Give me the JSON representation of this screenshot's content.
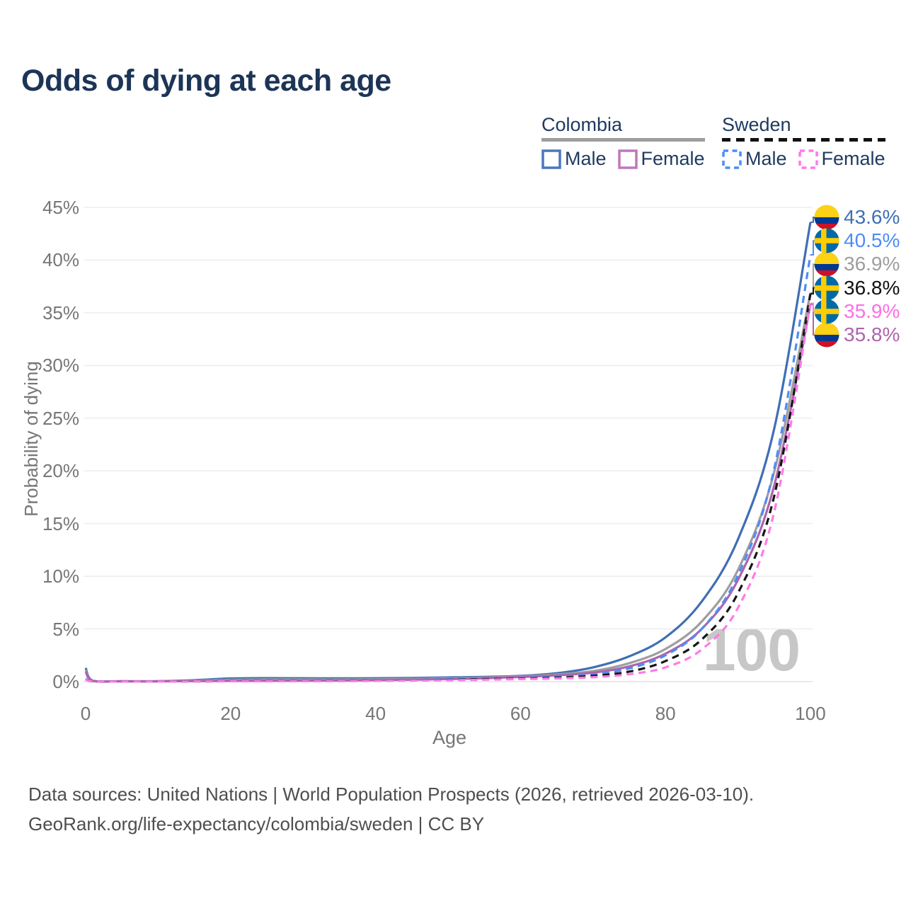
{
  "title": "Odds of dying at each age",
  "colors": {
    "title_text": "#1c3557",
    "legend_text": "#1e3a5f",
    "axis_text": "#767676",
    "grid_line": "#ededed",
    "baseline": "#e2e2e2",
    "watermark_text": "#c7c7c7",
    "footer_text": "#4e4e4e"
  },
  "legend": {
    "groups": [
      {
        "id": "colombia",
        "label": "Colombia",
        "line_color": "#9e9e9e",
        "dashed": false,
        "items": [
          {
            "id": "colombia-male",
            "label": "Male",
            "color": "#4a77bd",
            "dashed": false
          },
          {
            "id": "colombia-female",
            "label": "Female",
            "color": "#bd79bd",
            "dashed": false
          }
        ]
      },
      {
        "id": "sweden",
        "label": "Sweden",
        "line_color": "#111111",
        "dashed": true,
        "items": [
          {
            "id": "sweden-male",
            "label": "Male",
            "color": "#4e8cf7",
            "dashed": true
          },
          {
            "id": "sweden-female",
            "label": "Female",
            "color": "#ff7ae6",
            "dashed": true
          }
        ]
      }
    ]
  },
  "axes": {
    "x": {
      "label": "Age",
      "ticks": [
        0,
        20,
        40,
        60,
        80,
        100
      ],
      "range": [
        0,
        100
      ]
    },
    "y": {
      "label": "Probability of dying",
      "ticks": [
        0,
        5,
        10,
        15,
        20,
        25,
        30,
        35,
        40,
        45
      ],
      "unit": "%",
      "range": [
        0,
        45
      ]
    }
  },
  "watermark": "100",
  "footer": {
    "line1": "Data sources: United Nations | World Population Prospects (2026, retrieved 2026-03-10).",
    "line2": "GeoRank.org/life-expectancy/colombia/sweden | CC BY"
  },
  "chart_data": {
    "type": "line",
    "title": "Odds of dying at each age",
    "xlabel": "Age",
    "ylabel": "Probability of dying",
    "xlim": [
      0,
      100
    ],
    "ylim": [
      0,
      45
    ],
    "grid": "horizontal",
    "legend_position": "top-right",
    "x": [
      0,
      1,
      5,
      10,
      15,
      20,
      25,
      30,
      35,
      40,
      45,
      50,
      55,
      60,
      65,
      70,
      75,
      80,
      85,
      90,
      95,
      100
    ],
    "series": [
      {
        "id": "colombia-male",
        "name": "Colombia Male",
        "country": "colombia",
        "sex": "male",
        "color": "#3f6fb5",
        "dashed": false,
        "end_value": 43.6,
        "end_label": "43.6%",
        "label_color": "#3f6fb5",
        "label_rank": 0,
        "values": [
          1.3,
          0.09,
          0.04,
          0.04,
          0.14,
          0.3,
          0.33,
          0.32,
          0.31,
          0.32,
          0.35,
          0.4,
          0.45,
          0.55,
          0.8,
          1.35,
          2.4,
          4.2,
          7.6,
          13.5,
          24.0,
          43.6
        ]
      },
      {
        "id": "colombia-both",
        "name": "Colombia Both sexes",
        "country": "colombia",
        "sex": "both",
        "color": "#9e9e9e",
        "dashed": false,
        "end_value": 36.9,
        "end_label": "36.9%",
        "label_color": "#9e9e9e",
        "label_rank": 2,
        "values": [
          1.1,
          0.075,
          0.033,
          0.03,
          0.09,
          0.18,
          0.2,
          0.2,
          0.2,
          0.22,
          0.26,
          0.31,
          0.38,
          0.5,
          0.68,
          1.0,
          1.75,
          3.1,
          5.7,
          10.6,
          19.9,
          36.9
        ]
      },
      {
        "id": "colombia-female",
        "name": "Colombia Female",
        "country": "colombia",
        "sex": "female",
        "color": "#ad64ad",
        "dashed": false,
        "end_value": 35.8,
        "end_label": "35.8%",
        "label_color": "#ad64ad",
        "label_rank": 5,
        "values": [
          0.95,
          0.065,
          0.028,
          0.025,
          0.05,
          0.07,
          0.08,
          0.09,
          0.11,
          0.14,
          0.18,
          0.24,
          0.32,
          0.44,
          0.6,
          0.85,
          1.45,
          2.65,
          5.0,
          9.65,
          18.6,
          35.8
        ]
      },
      {
        "id": "sweden-male",
        "name": "Sweden Male",
        "country": "sweden",
        "sex": "male",
        "color": "#4e8cf7",
        "dashed": true,
        "end_value": 40.5,
        "end_label": "40.5%",
        "label_color": "#4e8cf7",
        "label_rank": 1,
        "values": [
          0.25,
          0.02,
          0.01,
          0.01,
          0.03,
          0.06,
          0.07,
          0.08,
          0.1,
          0.12,
          0.16,
          0.22,
          0.25,
          0.33,
          0.45,
          0.68,
          1.25,
          2.5,
          5.0,
          10.1,
          20.2,
          40.5
        ]
      },
      {
        "id": "sweden-both",
        "name": "Sweden Both sexes",
        "country": "sweden",
        "sex": "both",
        "color": "#161616",
        "dashed": true,
        "end_value": 36.8,
        "end_label": "36.8%",
        "label_color": "#111111",
        "label_rank": 3,
        "values": [
          0.22,
          0.018,
          0.009,
          0.009,
          0.02,
          0.045,
          0.05,
          0.055,
          0.07,
          0.09,
          0.12,
          0.17,
          0.24,
          0.28,
          0.38,
          0.55,
          0.95,
          1.95,
          4.0,
          8.4,
          17.6,
          36.8
        ]
      },
      {
        "id": "sweden-female",
        "name": "Sweden Female",
        "country": "sweden",
        "sex": "female",
        "color": "#ff7ae6",
        "dashed": true,
        "end_value": 35.9,
        "end_label": "35.9%",
        "label_color": "#ff6ee4",
        "label_rank": 4,
        "values": [
          0.2,
          0.016,
          0.008,
          0.008,
          0.015,
          0.03,
          0.035,
          0.04,
          0.05,
          0.07,
          0.1,
          0.13,
          0.18,
          0.24,
          0.3,
          0.42,
          0.7,
          1.35,
          3.05,
          7.0,
          16.1,
          35.9
        ]
      }
    ]
  }
}
